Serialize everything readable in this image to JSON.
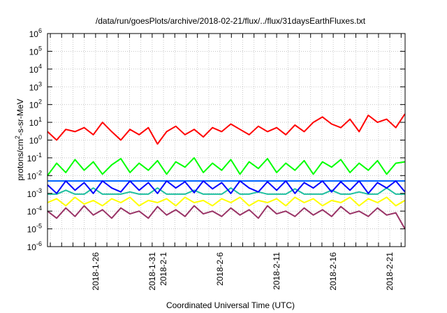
{
  "chart_data": {
    "type": "line",
    "title": "/data/run/goesPlots/archive/2018-02-21/flux/../flux/31daysEarthFluxes.txt",
    "xlabel": "Coordinated Universal Time (UTC)",
    "ylabel": {
      "pre": "protons/cm",
      "sup": "2",
      "post": "-s-sr-MeV"
    },
    "yscale": "log",
    "ylim": [
      1e-06,
      1000000.0
    ],
    "y_ticks": [
      {
        "base": "10",
        "exp": "-6",
        "value": 1e-06
      },
      {
        "base": "10",
        "exp": "-5",
        "value": 1e-05
      },
      {
        "base": "10",
        "exp": "-4",
        "value": 0.0001
      },
      {
        "base": "10",
        "exp": "-3",
        "value": 0.001
      },
      {
        "base": "10",
        "exp": "-2",
        "value": 0.01
      },
      {
        "base": "10",
        "exp": "-1",
        "value": 0.1
      },
      {
        "base": "10",
        "exp": "0",
        "value": 1
      },
      {
        "base": "10",
        "exp": "1",
        "value": 10
      },
      {
        "base": "10",
        "exp": "2",
        "value": 100
      },
      {
        "base": "10",
        "exp": "3",
        "value": 1000
      },
      {
        "base": "10",
        "exp": "4",
        "value": 10000
      },
      {
        "base": "10",
        "exp": "5",
        "value": 100000
      },
      {
        "base": "10",
        "exp": "6",
        "value": 1000000
      }
    ],
    "x_units": "days since 2018-01-21 00:00 UTC",
    "xlim": [
      0.75,
      32.35
    ],
    "x_ticks": [
      {
        "label": "2018-1-26",
        "day": 5
      },
      {
        "label": "2018-1-31",
        "day": 10
      },
      {
        "label": "2018-2-1",
        "day": 11
      },
      {
        "label": "2018-2-6",
        "day": 16
      },
      {
        "label": "2018-2-11",
        "day": 21
      },
      {
        "label": "2018-2-16",
        "day": 26
      },
      {
        "label": "2018-2-21",
        "day": 31
      }
    ],
    "grid": true,
    "x_start_day": 0.75,
    "x_step_days": 0.81,
    "series": [
      {
        "name": "red",
        "color": "#ff0000",
        "values": [
          3,
          1,
          4,
          3,
          5,
          2,
          10,
          3,
          1,
          4,
          2,
          5,
          0.6,
          3,
          6,
          2,
          4,
          1.5,
          5,
          3,
          8,
          4,
          2,
          6,
          3,
          5,
          2,
          7,
          3,
          10,
          20,
          8,
          5,
          15,
          3,
          25,
          10,
          15,
          5,
          30
        ]
      },
      {
        "name": "green",
        "color": "#00ff00",
        "values": [
          0.01,
          0.05,
          0.015,
          0.08,
          0.02,
          0.06,
          0.012,
          0.04,
          0.09,
          0.015,
          0.05,
          0.02,
          0.07,
          0.012,
          0.06,
          0.03,
          0.1,
          0.015,
          0.05,
          0.02,
          0.08,
          0.012,
          0.06,
          0.025,
          0.09,
          0.015,
          0.05,
          0.02,
          0.07,
          0.012,
          0.06,
          0.03,
          0.08,
          0.015,
          0.05,
          0.02,
          0.07,
          0.012,
          0.05,
          0.06
        ]
      },
      {
        "name": "teal",
        "color": "#20c0a0",
        "values": [
          0.0009,
          0.0009,
          0.0015,
          0.0009,
          0.0009,
          0.002,
          0.0009,
          0.0009,
          0.0009,
          0.0012,
          0.0009,
          0.0009,
          0.002,
          0.0009,
          0.0009,
          0.0009,
          0.0015,
          0.0009,
          0.0009,
          0.0009,
          0.002,
          0.0009,
          0.0009,
          0.0012,
          0.0009,
          0.0009,
          0.0009,
          0.0018,
          0.0009,
          0.0009,
          0.0009,
          0.0015,
          0.0009,
          0.0009,
          0.0012,
          0.0009,
          0.0009,
          0.002,
          0.0009,
          0.0009
        ]
      },
      {
        "name": "blue-upper",
        "color": "#0064ff",
        "constant": 0.005
      },
      {
        "name": "blue",
        "color": "#0000ff",
        "values": [
          0.003,
          0.001,
          0.005,
          0.0015,
          0.004,
          0.001,
          0.005,
          0.002,
          0.0012,
          0.005,
          0.0015,
          0.004,
          0.001,
          0.005,
          0.002,
          0.0045,
          0.0011,
          0.005,
          0.0018,
          0.004,
          0.001,
          0.005,
          0.002,
          0.0012,
          0.0045,
          0.0015,
          0.005,
          0.001,
          0.004,
          0.002,
          0.005,
          0.0012,
          0.0045,
          0.0015,
          0.005,
          0.001,
          0.004,
          0.002,
          0.005,
          0.0012
        ]
      },
      {
        "name": "yellow",
        "color": "#ffff00",
        "values": [
          0.0003,
          0.0005,
          0.0002,
          0.0006,
          0.00025,
          0.0004,
          0.0002,
          0.0005,
          0.0003,
          0.0006,
          0.0002,
          0.0004,
          0.0003,
          0.0005,
          0.0002,
          0.0006,
          0.0003,
          0.0004,
          0.0002,
          0.0005,
          0.0003,
          0.0006,
          0.0002,
          0.0004,
          0.0003,
          0.0005,
          0.0002,
          0.0006,
          0.0003,
          0.0005,
          0.0002,
          0.0004,
          0.0003,
          0.0006,
          0.0002,
          0.0005,
          0.0003,
          0.0006,
          0.0002,
          0.0004
        ]
      },
      {
        "name": "purple",
        "color": "#993366",
        "values": [
          0.0001,
          4e-05,
          0.00015,
          5e-05,
          0.0002,
          6e-05,
          0.00012,
          4e-05,
          0.00015,
          7e-05,
          0.0001,
          4e-05,
          0.00018,
          6e-05,
          0.00012,
          5e-05,
          0.0002,
          7e-05,
          0.0001,
          5e-05,
          0.00015,
          6e-05,
          0.00012,
          4e-05,
          0.0002,
          7e-05,
          0.0001,
          5e-05,
          0.00015,
          6e-05,
          0.00012,
          5e-05,
          0.00018,
          7e-05,
          0.0001,
          5e-05,
          0.00015,
          6e-05,
          8e-05,
          1e-05
        ]
      }
    ]
  }
}
